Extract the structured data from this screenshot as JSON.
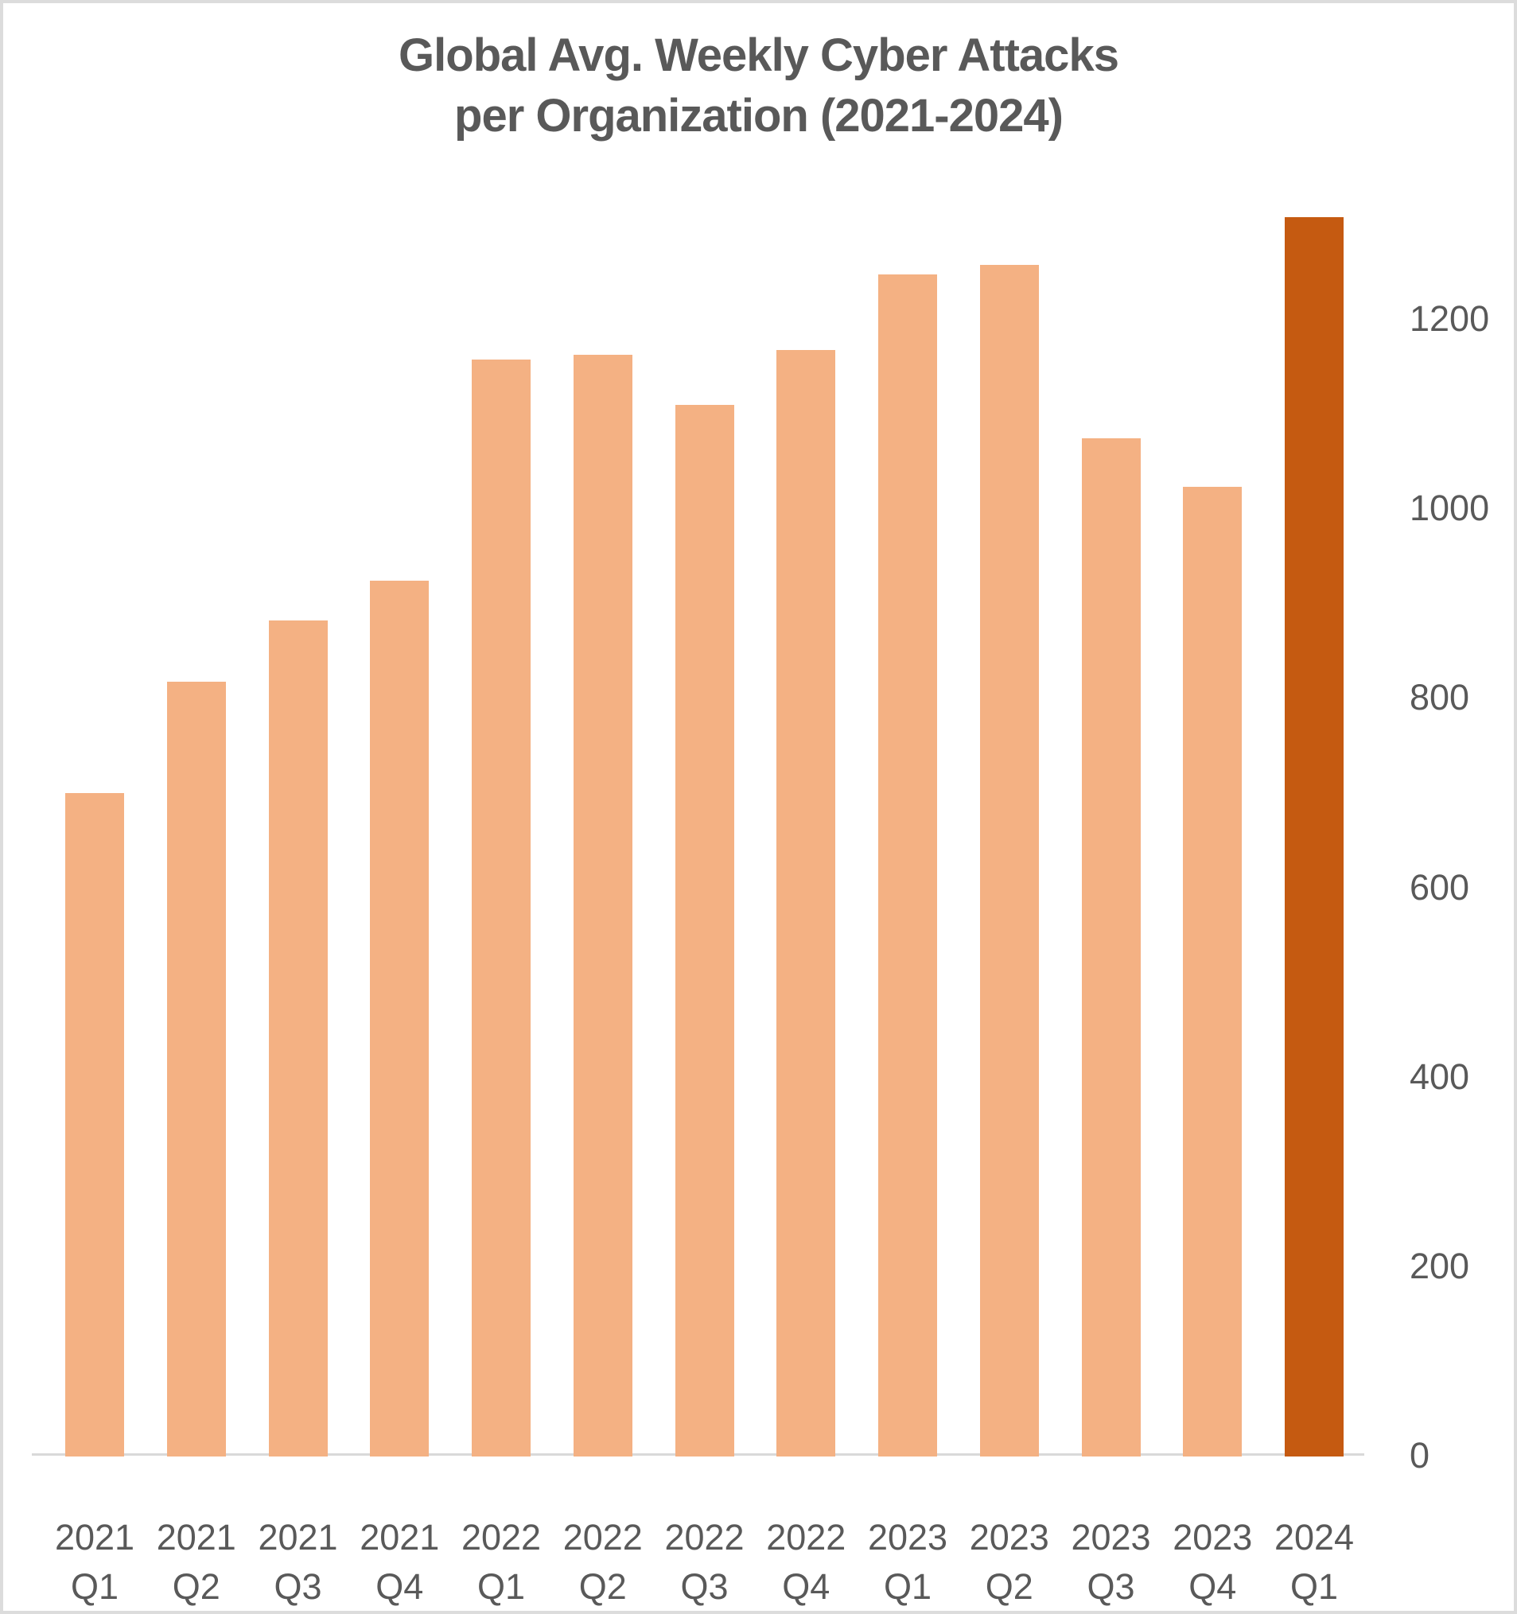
{
  "figure": {
    "title_line1": "Global Avg. Weekly Cyber Attacks",
    "title_line2": "per Organization (2021-2024)"
  },
  "chart_data": {
    "type": "bar",
    "title": "Global Avg. Weekly Cyber Attacks per Organization (2021-2024)",
    "categories": [
      "2021 Q1",
      "2021 Q2",
      "2021 Q3",
      "2021 Q4",
      "2022 Q1",
      "2022 Q2",
      "2022 Q3",
      "2022 Q4",
      "2023 Q1",
      "2023 Q2",
      "2023 Q3",
      "2023 Q4",
      "2024 Q1"
    ],
    "values": [
      700,
      818,
      883,
      925,
      1158,
      1163,
      1110,
      1168,
      1248,
      1258,
      1075,
      1024,
      1308
    ],
    "xlabel": "",
    "ylabel": "",
    "ylim": [
      0,
      1300
    ],
    "yticks": [
      0,
      200,
      400,
      600,
      800,
      1000,
      1200
    ],
    "ytick_side": "right",
    "grid": false,
    "legend": false,
    "bar_color": "#F4B183",
    "highlight_color": "#C55A11",
    "highlight_index": 12,
    "text_color": "#595959",
    "title_color": "#595959",
    "axis_line_color": "#D9D9D9",
    "background_color": "#FFFFFF",
    "border_color": "#DCDCDC"
  }
}
